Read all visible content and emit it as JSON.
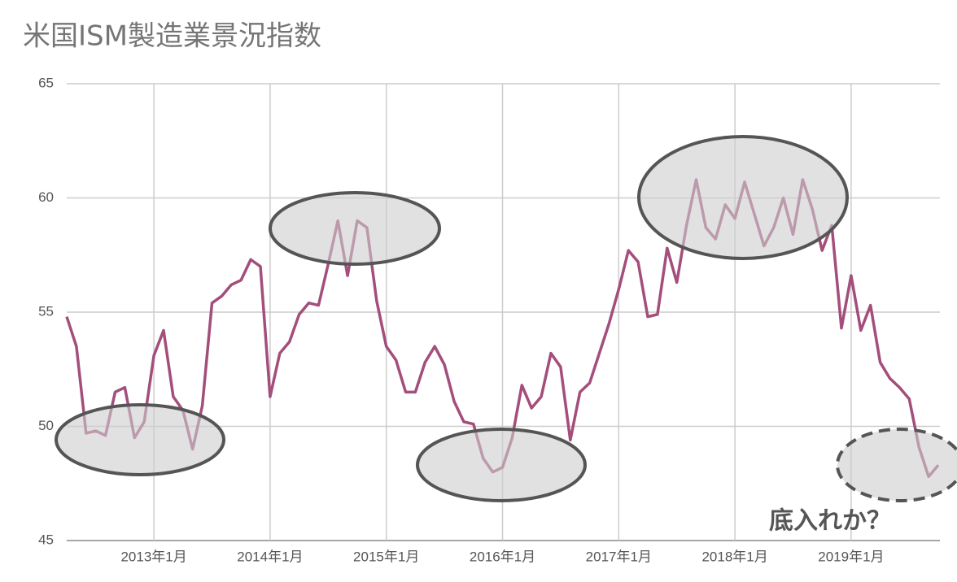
{
  "chart_data": {
    "type": "line",
    "title": "米国ISM製造業景況指数",
    "categories": [
      null,
      null,
      null,
      null,
      null,
      null,
      null,
      null,
      null,
      "2013年1月",
      null,
      null,
      null,
      null,
      null,
      null,
      null,
      null,
      null,
      null,
      null,
      "2014年1月",
      null,
      null,
      null,
      null,
      null,
      null,
      null,
      null,
      null,
      null,
      null,
      "2015年1月",
      null,
      null,
      null,
      null,
      null,
      null,
      null,
      null,
      null,
      null,
      null,
      "2016年1月",
      null,
      null,
      null,
      null,
      null,
      null,
      null,
      null,
      null,
      null,
      null,
      "2017年1月",
      null,
      null,
      null,
      null,
      null,
      null,
      null,
      null,
      null,
      null,
      null,
      "2018年1月",
      null,
      null,
      null,
      null,
      null,
      null,
      null,
      null,
      null,
      null,
      null,
      "2019年1月",
      null,
      null,
      null,
      null,
      null,
      null,
      null,
      null,
      null
    ],
    "series": [
      {
        "name": "ISM",
        "color": "#a34e7b",
        "values": [
          54.8,
          53.5,
          49.7,
          49.8,
          49.6,
          51.5,
          51.7,
          49.5,
          50.2,
          53.1,
          54.2,
          51.3,
          50.7,
          49.0,
          50.9,
          55.4,
          55.7,
          56.2,
          56.4,
          57.3,
          57.0,
          51.3,
          53.2,
          53.7,
          54.9,
          55.4,
          55.3,
          57.1,
          59.0,
          56.6,
          59.0,
          58.7,
          55.5,
          53.5,
          52.9,
          51.5,
          51.5,
          52.8,
          53.5,
          52.7,
          51.1,
          50.2,
          50.1,
          48.6,
          48.0,
          48.2,
          49.5,
          51.8,
          50.8,
          51.3,
          53.2,
          52.6,
          49.4,
          51.5,
          51.9,
          53.2,
          54.5,
          56.0,
          57.7,
          57.2,
          54.8,
          54.9,
          57.8,
          56.3,
          58.8,
          60.8,
          58.7,
          58.2,
          59.7,
          59.1,
          60.7,
          59.3,
          57.9,
          58.7,
          60.0,
          58.4,
          60.8,
          59.5,
          57.7,
          58.8,
          54.3,
          56.6,
          54.2,
          55.3,
          52.8,
          52.1,
          51.7,
          51.2,
          49.1,
          47.8,
          48.3
        ]
      }
    ],
    "ylim": [
      45,
      65
    ],
    "yticks": [
      45,
      50,
      55,
      60,
      65
    ],
    "grid": true,
    "annotation": "底入れか？"
  }
}
